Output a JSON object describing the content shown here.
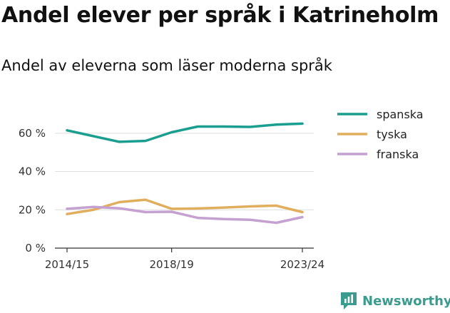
{
  "title": "Andel elever per språk i Katrineholm",
  "subtitle": "Andel av eleverna som läser moderna språk",
  "brand": {
    "name": "Newsworthy",
    "color": "#3a9b8e"
  },
  "chart_data": {
    "type": "line",
    "x": [
      "2014/15",
      "2015/16",
      "2016/17",
      "2017/18",
      "2018/19",
      "2019/20",
      "2020/21",
      "2021/22",
      "2022/23",
      "2023/24"
    ],
    "x_tick_labels": [
      "2014/15",
      "2018/19",
      "2023/24"
    ],
    "y_ticks": [
      0,
      20,
      40,
      60
    ],
    "y_tick_labels": [
      "0 %",
      "20 %",
      "40 %",
      "60 %"
    ],
    "ylim": [
      0,
      70
    ],
    "grid": true,
    "legend_position": "right",
    "series": [
      {
        "name": "spanska",
        "color": "#1a9e8f",
        "values": [
          61.5,
          58.5,
          55.5,
          56,
          60.5,
          63.5,
          63.5,
          63.3,
          64.5,
          65
        ]
      },
      {
        "name": "tyska",
        "color": "#e0ae5c",
        "values": [
          17.8,
          20,
          24,
          25.3,
          20.5,
          20.7,
          21.2,
          21.8,
          22.2,
          18.8
        ]
      },
      {
        "name": "franska",
        "color": "#c4a1d1",
        "values": [
          20.5,
          21.5,
          20.8,
          18.8,
          19,
          15.8,
          15.2,
          14.8,
          13.2,
          16.2
        ]
      }
    ]
  }
}
